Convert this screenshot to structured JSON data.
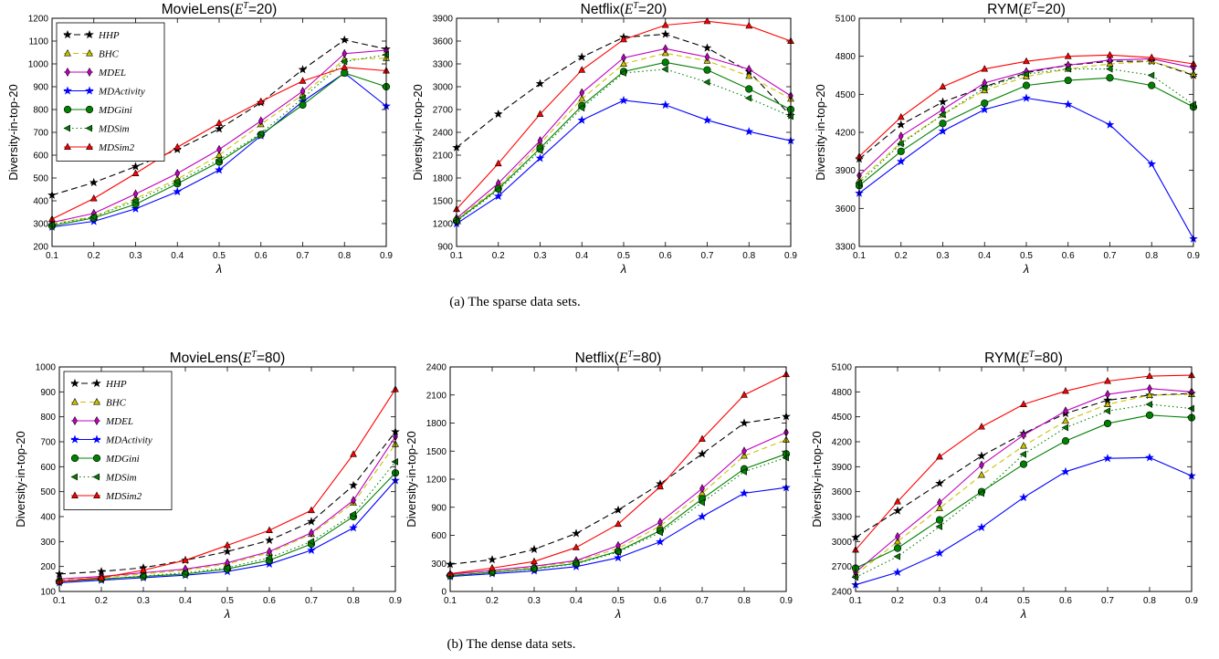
{
  "caption_a": "(a) The sparse data sets.",
  "caption_b": "(b) The dense data sets.",
  "series_styles": {
    "HHP": {
      "color": "#000000",
      "dash": "7,4",
      "marker": "star"
    },
    "BHC": {
      "color": "#c9c400",
      "dash": "6,4",
      "marker": "triangle-up"
    },
    "MDEL": {
      "color": "#bf00bf",
      "dash": "",
      "marker": "diamond"
    },
    "MDActivity": {
      "color": "#0000ff",
      "dash": "",
      "marker": "star"
    },
    "MDGini": {
      "color": "#008000",
      "dash": "",
      "marker": "circle"
    },
    "MDSim": {
      "color": "#008000",
      "dash": "1.5,3",
      "marker": "triangle-left"
    },
    "MDSim2": {
      "color": "#ff0000",
      "dash": "",
      "marker": "triangle-up"
    }
  },
  "chart_data": [
    {
      "type": "line",
      "title": "MovieLens(E^T=20)",
      "title_main": "MovieLens(",
      "title_sup": "T",
      "title_tail": "=20)",
      "xlabel": "λ",
      "ylabel": "Diversity-in-top-20",
      "x": [
        0.1,
        0.2,
        0.3,
        0.4,
        0.5,
        0.6,
        0.7,
        0.8,
        0.9
      ],
      "xticks": [
        "0.1",
        "0.2",
        "0.3",
        "0.4",
        "0.5",
        "0.6",
        "0.7",
        "0.8",
        "0.9"
      ],
      "xlim": [
        0.1,
        0.9
      ],
      "ylim": [
        200,
        1200
      ],
      "yticks": [
        200,
        300,
        400,
        500,
        600,
        700,
        800,
        900,
        1000,
        1100,
        1200
      ],
      "legend": "upper-left",
      "series": [
        {
          "name": "HHP",
          "values": [
            425,
            480,
            550,
            625,
            715,
            830,
            975,
            1105,
            1065
          ]
        },
        {
          "name": "BHC",
          "values": [
            300,
            330,
            410,
            495,
            600,
            735,
            865,
            1020,
            1025
          ]
        },
        {
          "name": "MDEL",
          "values": [
            305,
            345,
            430,
            520,
            625,
            750,
            880,
            1045,
            1060
          ]
        },
        {
          "name": "MDActivity",
          "values": [
            285,
            310,
            365,
            440,
            535,
            685,
            835,
            960,
            815
          ]
        },
        {
          "name": "MDGini",
          "values": [
            290,
            325,
            385,
            475,
            570,
            690,
            820,
            960,
            900
          ]
        },
        {
          "name": "MDSim",
          "values": [
            295,
            330,
            400,
            485,
            580,
            695,
            850,
            1010,
            1040
          ]
        },
        {
          "name": "MDSim2",
          "values": [
            320,
            410,
            520,
            635,
            740,
            835,
            925,
            985,
            970
          ]
        }
      ]
    },
    {
      "type": "line",
      "title": "Netflix(E^T=20)",
      "title_main": "Netflix(",
      "title_sup": "T",
      "title_tail": "=20)",
      "xlabel": "λ",
      "ylabel": "Diversity-in-top-20",
      "x": [
        0.1,
        0.2,
        0.3,
        0.4,
        0.5,
        0.6,
        0.7,
        0.8,
        0.9
      ],
      "xticks": [
        "0.1",
        "0.2",
        "0.3",
        "0.4",
        "0.5",
        "0.6",
        "0.7",
        "0.8",
        "0.9"
      ],
      "xlim": [
        0.1,
        0.9
      ],
      "ylim": [
        900,
        3900
      ],
      "yticks": [
        900,
        1200,
        1500,
        1800,
        2100,
        2400,
        2700,
        3000,
        3300,
        3600,
        3900
      ],
      "legend": "none",
      "series": [
        {
          "name": "HHP",
          "values": [
            2200,
            2640,
            3040,
            3390,
            3650,
            3690,
            3510,
            3200,
            2620
          ]
        },
        {
          "name": "BHC",
          "values": [
            1260,
            1680,
            2250,
            2840,
            3300,
            3440,
            3340,
            3140,
            2840
          ]
        },
        {
          "name": "MDEL",
          "values": [
            1270,
            1730,
            2290,
            2920,
            3380,
            3500,
            3390,
            3230,
            2880
          ]
        },
        {
          "name": "MDActivity",
          "values": [
            1200,
            1560,
            2060,
            2560,
            2820,
            2760,
            2560,
            2410,
            2290
          ]
        },
        {
          "name": "MDGini",
          "values": [
            1240,
            1660,
            2190,
            2750,
            3200,
            3320,
            3220,
            2970,
            2700
          ]
        },
        {
          "name": "MDSim",
          "values": [
            1230,
            1640,
            2160,
            2720,
            3180,
            3230,
            3060,
            2850,
            2610
          ]
        },
        {
          "name": "MDSim2",
          "values": [
            1390,
            1990,
            2640,
            3220,
            3620,
            3810,
            3860,
            3800,
            3600
          ]
        }
      ]
    },
    {
      "type": "line",
      "title": "RYM(E^T=20)",
      "title_main": "RYM(",
      "title_sup": "T",
      "title_tail": "=20)",
      "xlabel": "λ",
      "ylabel": "Diversity-in-top-20",
      "x": [
        0.1,
        0.2,
        0.3,
        0.4,
        0.5,
        0.6,
        0.7,
        0.8,
        0.9
      ],
      "xticks": [
        "0.1",
        "0.2",
        "0.3",
        "0.4",
        "0.5",
        "0.6",
        "0.7",
        "0.8",
        "0.9"
      ],
      "xlim": [
        0.1,
        0.9
      ],
      "ylim": [
        3300,
        5100
      ],
      "yticks": [
        3300,
        3600,
        3900,
        4200,
        4500,
        4800,
        5100
      ],
      "legend": "none",
      "series": [
        {
          "name": "HHP",
          "values": [
            3990,
            4260,
            4440,
            4560,
            4670,
            4730,
            4760,
            4760,
            4650
          ]
        },
        {
          "name": "BHC",
          "values": [
            3820,
            4120,
            4340,
            4530,
            4640,
            4700,
            4740,
            4760,
            4660
          ]
        },
        {
          "name": "MDEL",
          "values": [
            3860,
            4170,
            4380,
            4590,
            4680,
            4730,
            4770,
            4780,
            4710
          ]
        },
        {
          "name": "MDActivity",
          "values": [
            3720,
            3970,
            4210,
            4380,
            4470,
            4420,
            4260,
            3950,
            3360
          ]
        },
        {
          "name": "MDGini",
          "values": [
            3780,
            4050,
            4270,
            4430,
            4570,
            4610,
            4630,
            4570,
            4400
          ]
        },
        {
          "name": "MDSim",
          "values": [
            3800,
            4110,
            4340,
            4550,
            4660,
            4700,
            4700,
            4650,
            4420
          ]
        },
        {
          "name": "MDSim2",
          "values": [
            4010,
            4320,
            4560,
            4700,
            4760,
            4800,
            4810,
            4790,
            4740
          ]
        }
      ]
    },
    {
      "type": "line",
      "title": "MovieLens(E^T=80)",
      "title_main": "MovieLens(",
      "title_sup": "T",
      "title_tail": "=80)",
      "xlabel": "λ",
      "ylabel": "Diversity-in-top-20",
      "x": [
        0.1,
        0.2,
        0.3,
        0.4,
        0.5,
        0.6,
        0.7,
        0.8,
        0.9
      ],
      "xticks": [
        "0.1",
        "0.2",
        "0.3",
        "0.4",
        "0.5",
        "0.6",
        "0.7",
        "0.8",
        "0.9"
      ],
      "xlim": [
        0.1,
        0.9
      ],
      "ylim": [
        100,
        1000
      ],
      "yticks": [
        100,
        200,
        300,
        400,
        500,
        600,
        700,
        800,
        900,
        1000
      ],
      "legend": "upper-left",
      "series": [
        {
          "name": "HHP",
          "values": [
            170,
            180,
            195,
            225,
            260,
            305,
            380,
            525,
            740
          ]
        },
        {
          "name": "BHC",
          "values": [
            145,
            155,
            170,
            185,
            210,
            255,
            330,
            455,
            690
          ]
        },
        {
          "name": "MDEL",
          "values": [
            150,
            160,
            175,
            190,
            215,
            260,
            335,
            465,
            720
          ]
        },
        {
          "name": "MDActivity",
          "values": [
            135,
            145,
            155,
            165,
            180,
            210,
            265,
            355,
            545
          ]
        },
        {
          "name": "MDGini",
          "values": [
            140,
            150,
            160,
            170,
            190,
            225,
            290,
            400,
            575
          ]
        },
        {
          "name": "MDSim",
          "values": [
            142,
            150,
            162,
            175,
            195,
            235,
            300,
            410,
            620
          ]
        },
        {
          "name": "MDSim2",
          "values": [
            140,
            155,
            185,
            225,
            285,
            345,
            425,
            650,
            910
          ]
        }
      ]
    },
    {
      "type": "line",
      "title": "Netflix(E^T=80)",
      "title_main": "Netflix(",
      "title_sup": "T",
      "title_tail": "=80)",
      "xlabel": "λ",
      "ylabel": "Diversity-in-top-20",
      "x": [
        0.1,
        0.2,
        0.3,
        0.4,
        0.5,
        0.6,
        0.7,
        0.8,
        0.9
      ],
      "xticks": [
        "0.1",
        "0.2",
        "0.3",
        "0.4",
        "0.5",
        "0.6",
        "0.7",
        "0.8",
        "0.9"
      ],
      "xlim": [
        0.1,
        0.9
      ],
      "ylim": [
        0,
        2400
      ],
      "yticks": [
        0,
        300,
        600,
        900,
        1200,
        1500,
        1800,
        2100,
        2400
      ],
      "legend": "none",
      "series": [
        {
          "name": "HHP",
          "values": [
            290,
            340,
            450,
            620,
            870,
            1150,
            1470,
            1800,
            1870
          ]
        },
        {
          "name": "BHC",
          "values": [
            180,
            220,
            260,
            320,
            460,
            700,
            1050,
            1450,
            1620
          ]
        },
        {
          "name": "MDEL",
          "values": [
            185,
            225,
            270,
            330,
            490,
            740,
            1100,
            1500,
            1700
          ]
        },
        {
          "name": "MDActivity",
          "values": [
            160,
            190,
            220,
            265,
            360,
            530,
            800,
            1050,
            1110
          ]
        },
        {
          "name": "MDGini",
          "values": [
            170,
            205,
            245,
            300,
            430,
            650,
            990,
            1310,
            1470
          ]
        },
        {
          "name": "MDSim",
          "values": [
            170,
            205,
            240,
            295,
            420,
            630,
            950,
            1280,
            1430
          ]
        },
        {
          "name": "MDSim2",
          "values": [
            190,
            250,
            320,
            470,
            720,
            1120,
            1630,
            2100,
            2320
          ]
        }
      ]
    },
    {
      "type": "line",
      "title": "RYM(E^T=80)",
      "title_main": "RYM(",
      "title_sup": "T",
      "title_tail": "=80)",
      "xlabel": "λ",
      "ylabel": "Diversity-in-top-20",
      "x": [
        0.1,
        0.2,
        0.3,
        0.4,
        0.5,
        0.6,
        0.7,
        0.8,
        0.9
      ],
      "xticks": [
        "0.1",
        "0.2",
        "0.3",
        "0.4",
        "0.5",
        "0.6",
        "0.7",
        "0.8",
        "0.9"
      ],
      "xlim": [
        0.1,
        0.9
      ],
      "ylim": [
        2400,
        5100
      ],
      "yticks": [
        2400,
        2700,
        3000,
        3300,
        3600,
        3900,
        4200,
        4500,
        4800,
        5100
      ],
      "legend": "none",
      "series": [
        {
          "name": "HHP",
          "values": [
            3050,
            3370,
            3700,
            4030,
            4300,
            4540,
            4700,
            4760,
            4780
          ]
        },
        {
          "name": "BHC",
          "values": [
            2600,
            3000,
            3400,
            3800,
            4150,
            4450,
            4650,
            4760,
            4770
          ]
        },
        {
          "name": "MDEL",
          "values": [
            2630,
            3060,
            3470,
            3920,
            4280,
            4570,
            4770,
            4840,
            4800
          ]
        },
        {
          "name": "MDActivity",
          "values": [
            2480,
            2630,
            2860,
            3170,
            3530,
            3840,
            4000,
            4010,
            3790
          ]
        },
        {
          "name": "MDGini",
          "values": [
            2680,
            2920,
            3260,
            3600,
            3930,
            4210,
            4420,
            4520,
            4490
          ]
        },
        {
          "name": "MDSim",
          "values": [
            2570,
            2820,
            3180,
            3580,
            4050,
            4370,
            4570,
            4650,
            4600
          ]
        },
        {
          "name": "MDSim2",
          "values": [
            2900,
            3480,
            4020,
            4380,
            4650,
            4810,
            4930,
            4990,
            5000
          ]
        }
      ]
    }
  ]
}
